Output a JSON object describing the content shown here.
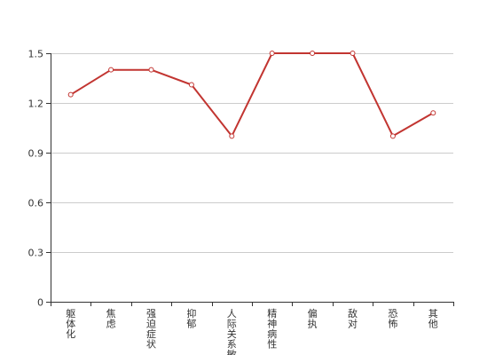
{
  "chart_data": {
    "type": "line",
    "categories": [
      "躯体化",
      "焦虑",
      "强迫症状",
      "抑郁",
      "人际关系敏感",
      "精神病性",
      "偏执",
      "敌对",
      "恐怖",
      "其他"
    ],
    "series": [
      {
        "values": [
          1.25,
          1.4,
          1.4,
          1.31,
          1.0,
          1.5,
          1.5,
          1.5,
          1.0,
          1.14
        ]
      }
    ],
    "ylim": [
      0,
      1.5
    ],
    "yticks": [
      "0",
      "0.3",
      "0.6",
      "0.9",
      "1.2",
      "1.5"
    ],
    "grid": true,
    "colors": {
      "line": "#c23531",
      "grid": "#cccccc",
      "axis": "#333333"
    }
  }
}
